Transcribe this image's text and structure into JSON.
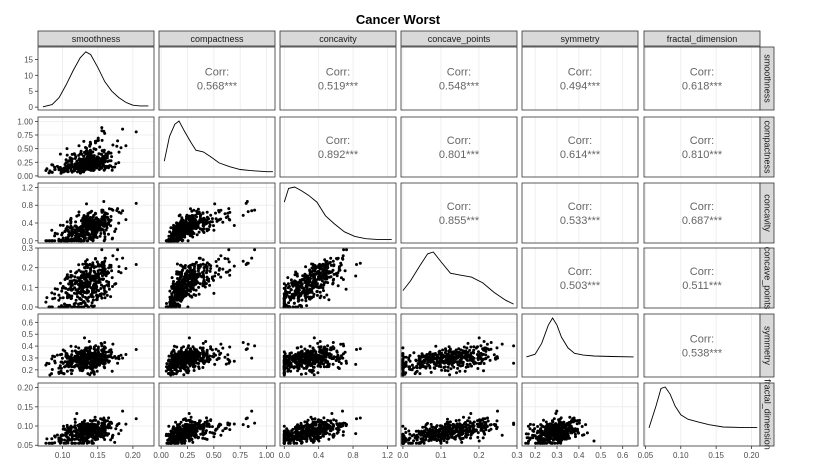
{
  "chart_data": {
    "type": "scatter-matrix",
    "title": "Cancer Worst",
    "variables": [
      "smoothness",
      "compactness",
      "concavity",
      "concave_points",
      "symmetry",
      "fractal_dimension"
    ],
    "corr_label": "Corr:",
    "correlations": [
      {
        "row": "smoothness",
        "col": "compactness",
        "value": "0.568***"
      },
      {
        "row": "smoothness",
        "col": "concavity",
        "value": "0.519***"
      },
      {
        "row": "smoothness",
        "col": "concave_points",
        "value": "0.548***"
      },
      {
        "row": "smoothness",
        "col": "symmetry",
        "value": "0.494***"
      },
      {
        "row": "smoothness",
        "col": "fractal_dimension",
        "value": "0.618***"
      },
      {
        "row": "compactness",
        "col": "concavity",
        "value": "0.892***"
      },
      {
        "row": "compactness",
        "col": "concave_points",
        "value": "0.801***"
      },
      {
        "row": "compactness",
        "col": "symmetry",
        "value": "0.614***"
      },
      {
        "row": "compactness",
        "col": "fractal_dimension",
        "value": "0.810***"
      },
      {
        "row": "concavity",
        "col": "concave_points",
        "value": "0.855***"
      },
      {
        "row": "concavity",
        "col": "symmetry",
        "value": "0.533***"
      },
      {
        "row": "concavity",
        "col": "fractal_dimension",
        "value": "0.687***"
      },
      {
        "row": "concave_points",
        "col": "symmetry",
        "value": "0.503***"
      },
      {
        "row": "concave_points",
        "col": "fractal_dimension",
        "value": "0.511***"
      },
      {
        "row": "symmetry",
        "col": "fractal_dimension",
        "value": "0.538***"
      }
    ],
    "x_axes": [
      {
        "variable": "smoothness",
        "range": [
          0.065,
          0.23
        ],
        "ticks": [
          0.1,
          0.15,
          0.2
        ],
        "tick_labels": [
          "0.10",
          "0.15",
          "0.20"
        ]
      },
      {
        "variable": "compactness",
        "range": [
          -0.02,
          1.08
        ],
        "ticks": [
          0.0,
          0.25,
          0.5,
          0.75,
          1.0
        ],
        "tick_labels": [
          "0.00",
          "0.25",
          "0.50",
          "0.75",
          "1.00"
        ]
      },
      {
        "variable": "concavity",
        "range": [
          -0.05,
          1.3
        ],
        "ticks": [
          0.0,
          0.4,
          0.8,
          1.2
        ],
        "tick_labels": [
          "0.0",
          "0.4",
          "0.8",
          "1.2"
        ]
      },
      {
        "variable": "concave_points",
        "range": [
          -0.005,
          0.3
        ],
        "ticks": [
          0.0,
          0.1,
          0.2,
          0.3
        ],
        "tick_labels": [
          "0.0",
          "0.1",
          "0.2",
          "0.3"
        ]
      },
      {
        "variable": "symmetry",
        "range": [
          0.14,
          0.67
        ],
        "ticks": [
          0.2,
          0.3,
          0.4,
          0.5,
          0.6
        ],
        "tick_labels": [
          "0.2",
          "0.3",
          "0.4",
          "0.5",
          "0.6"
        ]
      },
      {
        "variable": "fractal_dimension",
        "range": [
          0.048,
          0.212
        ],
        "ticks": [
          0.05,
          0.1,
          0.15,
          0.2
        ],
        "tick_labels": [
          "0.05",
          "0.10",
          "0.15",
          "0.20"
        ]
      }
    ],
    "y_axes": [
      {
        "variable": "smoothness",
        "range": [
          -0.9,
          18.9
        ],
        "ticks": [
          0,
          5,
          10,
          15
        ],
        "tick_labels": [
          "0",
          "5",
          "10",
          "15"
        ]
      },
      {
        "variable": "compactness",
        "range": [
          -0.02,
          1.08
        ],
        "ticks": [
          0.0,
          0.25,
          0.5,
          0.75,
          1.0
        ],
        "tick_labels": [
          "0.00",
          "0.25",
          "0.50",
          "0.75",
          "1.00"
        ]
      },
      {
        "variable": "concavity",
        "range": [
          -0.05,
          1.3
        ],
        "ticks": [
          0.0,
          0.4,
          0.8,
          1.2
        ],
        "tick_labels": [
          "0.0",
          "0.4",
          "0.8",
          "1.2"
        ]
      },
      {
        "variable": "concave_points",
        "range": [
          -0.005,
          0.3
        ],
        "ticks": [
          0.0,
          0.1,
          0.2,
          0.3
        ],
        "tick_labels": [
          "0.0",
          "0.1",
          "0.2",
          "0.3"
        ]
      },
      {
        "variable": "symmetry",
        "range": [
          0.14,
          0.67
        ],
        "ticks": [
          0.2,
          0.3,
          0.4,
          0.5,
          0.6
        ],
        "tick_labels": [
          "0.2",
          "0.3",
          "0.4",
          "0.5",
          "0.6"
        ]
      },
      {
        "variable": "fractal_dimension",
        "range": [
          0.048,
          0.212
        ],
        "ticks": [
          0.05,
          0.1,
          0.15,
          0.2
        ],
        "tick_labels": [
          "0.05",
          "0.10",
          "0.15",
          "0.20"
        ]
      }
    ],
    "densities": [
      {
        "variable": "smoothness",
        "points": [
          [
            0.072,
            0.1
          ],
          [
            0.085,
            0.8
          ],
          [
            0.095,
            3
          ],
          [
            0.105,
            7
          ],
          [
            0.115,
            11.5
          ],
          [
            0.125,
            15.5
          ],
          [
            0.133,
            17.4
          ],
          [
            0.14,
            16.5
          ],
          [
            0.15,
            12.5
          ],
          [
            0.16,
            8
          ],
          [
            0.17,
            5
          ],
          [
            0.18,
            3
          ],
          [
            0.19,
            1.5
          ],
          [
            0.2,
            0.6
          ],
          [
            0.21,
            0.4
          ],
          [
            0.222,
            0.4
          ]
        ]
      },
      {
        "variable": "compactness",
        "points": [
          [
            0.03,
            0.25
          ],
          [
            0.08,
            0.7
          ],
          [
            0.13,
            0.92
          ],
          [
            0.17,
            0.98
          ],
          [
            0.22,
            0.8
          ],
          [
            0.28,
            0.6
          ],
          [
            0.33,
            0.45
          ],
          [
            0.4,
            0.42
          ],
          [
            0.47,
            0.33
          ],
          [
            0.55,
            0.22
          ],
          [
            0.65,
            0.15
          ],
          [
            0.75,
            0.1
          ],
          [
            0.85,
            0.08
          ],
          [
            1.0,
            0.06
          ],
          [
            1.06,
            0.06
          ]
        ]
      },
      {
        "variable": "concavity",
        "points": [
          [
            0.0,
            0.85
          ],
          [
            0.05,
            1.15
          ],
          [
            0.12,
            1.18
          ],
          [
            0.2,
            1.1
          ],
          [
            0.28,
            1.0
          ],
          [
            0.38,
            0.85
          ],
          [
            0.48,
            0.55
          ],
          [
            0.58,
            0.38
          ],
          [
            0.7,
            0.2
          ],
          [
            0.82,
            0.1
          ],
          [
            0.95,
            0.05
          ],
          [
            1.1,
            0.03
          ],
          [
            1.25,
            0.03
          ]
        ]
      },
      {
        "variable": "concave_points",
        "points": [
          [
            0.0,
            0.08
          ],
          [
            0.02,
            0.13
          ],
          [
            0.045,
            0.21
          ],
          [
            0.065,
            0.27
          ],
          [
            0.08,
            0.28
          ],
          [
            0.1,
            0.23
          ],
          [
            0.125,
            0.17
          ],
          [
            0.15,
            0.16
          ],
          [
            0.18,
            0.15
          ],
          [
            0.21,
            0.12
          ],
          [
            0.24,
            0.07
          ],
          [
            0.27,
            0.03
          ],
          [
            0.291,
            0.01
          ]
        ]
      },
      {
        "variable": "symmetry",
        "points": [
          [
            0.16,
            0.2
          ],
          [
            0.2,
            0.23
          ],
          [
            0.23,
            0.35
          ],
          [
            0.26,
            0.55
          ],
          [
            0.28,
            0.63
          ],
          [
            0.3,
            0.55
          ],
          [
            0.32,
            0.42
          ],
          [
            0.35,
            0.3
          ],
          [
            0.38,
            0.24
          ],
          [
            0.42,
            0.22
          ],
          [
            0.47,
            0.21
          ],
          [
            0.55,
            0.205
          ],
          [
            0.65,
            0.2
          ]
        ]
      },
      {
        "variable": "fractal_dimension",
        "points": [
          [
            0.055,
            0.055
          ],
          [
            0.065,
            0.13
          ],
          [
            0.072,
            0.19
          ],
          [
            0.078,
            0.195
          ],
          [
            0.085,
            0.17
          ],
          [
            0.092,
            0.13
          ],
          [
            0.1,
            0.1
          ],
          [
            0.11,
            0.085
          ],
          [
            0.125,
            0.075
          ],
          [
            0.14,
            0.066
          ],
          [
            0.16,
            0.058
          ],
          [
            0.19,
            0.056
          ],
          [
            0.208,
            0.056
          ]
        ]
      }
    ],
    "scatter_style": {
      "point_color": "#000000",
      "panel_background": "#ffffff",
      "grid_color": "#ebebeb",
      "strip_fill": "#d9d9d9",
      "strip_border": "#333333",
      "panel_border": "#333333"
    },
    "grid": true
  }
}
